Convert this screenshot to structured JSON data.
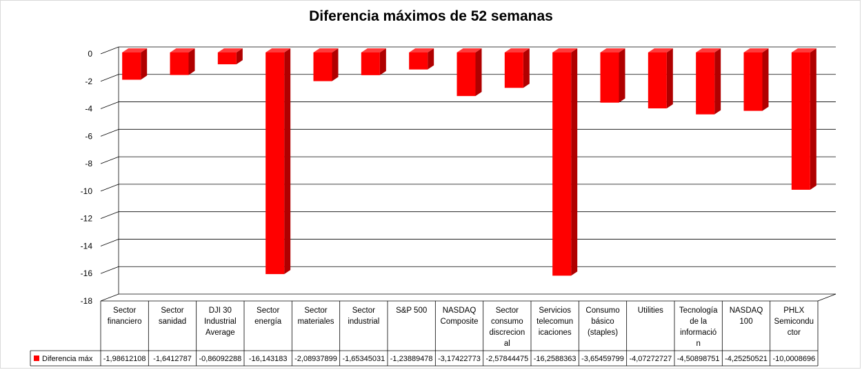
{
  "chart_data": {
    "type": "bar",
    "title": "Diferencia máximos de 52 semanas",
    "xlabel": "",
    "ylabel": "",
    "ylim": [
      -18,
      0
    ],
    "yticks": [
      0,
      -2,
      -4,
      -6,
      -8,
      -10,
      -12,
      -14,
      -16,
      -18
    ],
    "grid": true,
    "legend_position": "data-table",
    "categories": [
      [
        "Sector",
        "financiero"
      ],
      [
        "Sector",
        "sanidad"
      ],
      [
        "DJI 30",
        "Industrial",
        "Average"
      ],
      [
        "Sector",
        "energía"
      ],
      [
        "Sector",
        "materiales"
      ],
      [
        "Sector",
        "industrial"
      ],
      [
        "S&P 500"
      ],
      [
        "NASDAQ",
        "Composite"
      ],
      [
        "Sector",
        "consumo",
        "discrecion",
        "al"
      ],
      [
        "Servicios",
        "telecomun",
        "icaciones"
      ],
      [
        "Consumo",
        "básico",
        "(staples)"
      ],
      [
        "Utilities"
      ],
      [
        "Tecnología",
        "de la",
        "informació",
        "n"
      ],
      [
        "NASDAQ",
        "100"
      ],
      [
        "PHLX",
        "Semicondu",
        "ctor"
      ]
    ],
    "series": [
      {
        "name": "Diferencia máx",
        "color": "#ff0000",
        "values": [
          -1.98612108,
          -1.6412787,
          -0.86092288,
          -16.143183,
          -2.08937899,
          -1.65345031,
          -1.23889478,
          -3.17422773,
          -2.57844475,
          -16.2588363,
          -3.65459799,
          -4.07272727,
          -4.50898751,
          -4.25250521,
          -10.0008696
        ],
        "value_labels": [
          "-1,98612108",
          "-1,6412787",
          "-0,86092288",
          "-16,143183",
          "-2,08937899",
          "-1,65345031",
          "-1,23889478",
          "-3,17422773",
          "-2,57844475",
          "-16,2588363",
          "-3,65459799",
          "-4,07272727",
          "-4,50898751",
          "-4,25250521",
          "-10,0008696"
        ]
      }
    ]
  }
}
